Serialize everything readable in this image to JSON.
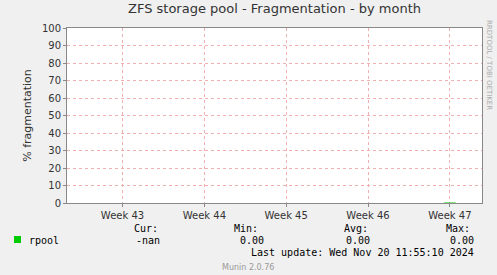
{
  "chart_data": {
    "type": "line",
    "title": "ZFS storage pool - Fragmentation - by month",
    "y_label": "% fragmentation",
    "categories": [
      null,
      null,
      null,
      null,
      null,
      null,
      null,
      null,
      null,
      "Week 43",
      null,
      null,
      null,
      null,
      null,
      null,
      null,
      null,
      null,
      null,
      null,
      null,
      null,
      "Week 44",
      null,
      null,
      null,
      null,
      null,
      null,
      null,
      null,
      null,
      null,
      null,
      null,
      null,
      "Week 45",
      null,
      null,
      null,
      null,
      null,
      null,
      null,
      null,
      null,
      null,
      null,
      null,
      null,
      "Week 46",
      null,
      null,
      null,
      null,
      null,
      null,
      null,
      null,
      null,
      null,
      null,
      null,
      null,
      "Week 47",
      null,
      null,
      null,
      null,
      null
    ],
    "series": [
      {
        "name": "rpool",
        "color": "#00cc00",
        "values": [
          null,
          null,
          null,
          null,
          null,
          null,
          null,
          null,
          null,
          null,
          null,
          null,
          null,
          null,
          null,
          null,
          null,
          null,
          null,
          null,
          null,
          null,
          null,
          null,
          null,
          null,
          null,
          null,
          null,
          null,
          null,
          null,
          null,
          null,
          null,
          null,
          null,
          null,
          null,
          null,
          null,
          null,
          null,
          null,
          null,
          null,
          null,
          null,
          null,
          null,
          null,
          null,
          null,
          null,
          null,
          null,
          null,
          null,
          null,
          null,
          null,
          null,
          null,
          null,
          0,
          0,
          0,
          null,
          null,
          null,
          null
        ]
      }
    ],
    "ylim": [
      0,
      100
    ],
    "yticks": [
      0,
      10,
      20,
      30,
      40,
      50,
      60,
      70,
      80,
      90,
      100
    ],
    "grid": true,
    "stats": {
      "headers": [
        "Cur:",
        "Min:",
        "Avg:",
        "Max:"
      ],
      "values": [
        "-nan",
        "0.00",
        "0.00",
        "0.00"
      ]
    },
    "footer": "Last update: Wed Nov 20 11:55:10 2024",
    "credit": "Munin 2.0.76",
    "side_text": "RRDTOOL / TOBI OETIKER"
  }
}
